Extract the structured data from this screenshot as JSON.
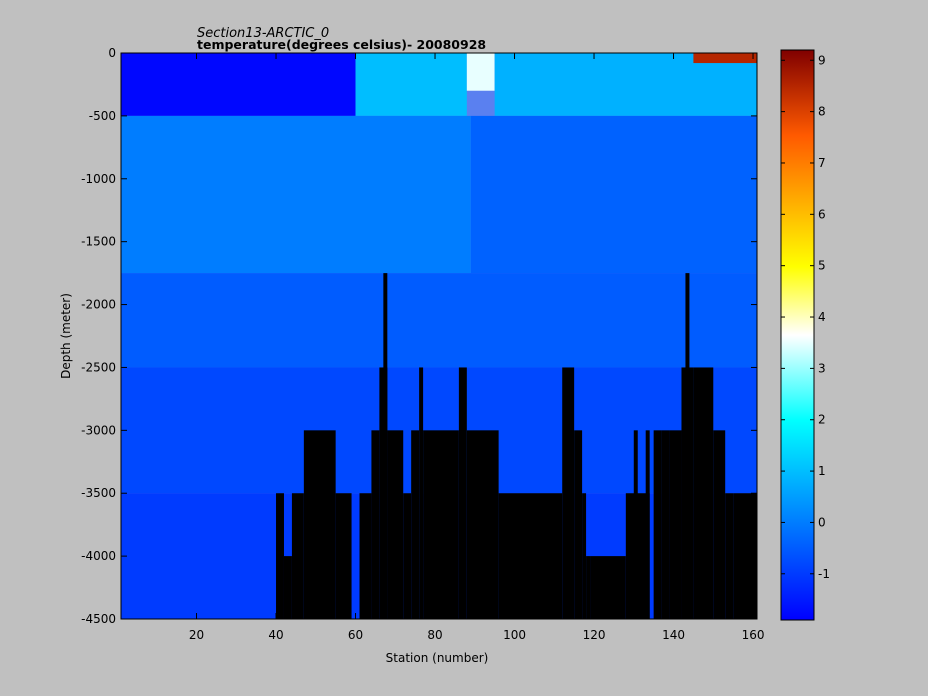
{
  "chart_data": {
    "type": "heatmap",
    "title": "Section13-ARCTIC_0",
    "subtitle": "temperature(degrees  celsius)- 20080928",
    "xlabel": "Station (number)",
    "ylabel": "Depth (meter)",
    "xlim": [
      1,
      161
    ],
    "ylim": [
      -4500,
      0
    ],
    "x_ticks": [
      20,
      40,
      60,
      80,
      100,
      120,
      140,
      160
    ],
    "x_tick_labels": [
      "20",
      "40",
      "60",
      "80",
      "100",
      "120",
      "140",
      "160"
    ],
    "y_ticks": [
      0,
      -500,
      -1000,
      -1500,
      -2000,
      -2500,
      -3000,
      -3500,
      -4000,
      -4500
    ],
    "y_tick_labels": [
      "0",
      "-500",
      "-1000",
      "-1500",
      "-2000",
      "-2500",
      "-3000",
      "-3500",
      "-4000",
      "-4500"
    ],
    "colorbar": {
      "colormap": "jet",
      "range": [
        -1.9,
        9.2
      ],
      "ticks": [
        -1,
        0,
        1,
        2,
        3,
        4,
        5,
        6,
        7,
        8,
        9
      ],
      "tick_labels": [
        "-1",
        "0",
        "1",
        "2",
        "3",
        "4",
        "5",
        "6",
        "7",
        "8",
        "9"
      ]
    },
    "background_temperature": [
      {
        "depth_top": 0,
        "depth_bottom": -500,
        "stations": [
          1,
          60
        ],
        "value": -1.8
      },
      {
        "depth_top": 0,
        "depth_bottom": -500,
        "stations": [
          60,
          88
        ],
        "value": 1.0
      },
      {
        "depth_top": 0,
        "depth_bottom": -300,
        "stations": [
          88,
          95
        ],
        "value": 3.5
      },
      {
        "depth_top": 0,
        "depth_bottom": -500,
        "stations": [
          95,
          161
        ],
        "value": 0.8
      },
      {
        "depth_top": 0,
        "depth_bottom": -80,
        "stations": [
          145,
          161
        ],
        "value": 8.5
      },
      {
        "depth_top": -500,
        "depth_bottom": -1750,
        "stations": [
          1,
          89
        ],
        "value": 0.0
      },
      {
        "depth_top": -500,
        "depth_bottom": -1750,
        "stations": [
          89,
          161
        ],
        "value": -0.4
      },
      {
        "depth_top": -1750,
        "depth_bottom": -2500,
        "stations": [
          1,
          161
        ],
        "value": -0.5
      },
      {
        "depth_top": -2500,
        "depth_bottom": -3500,
        "stations": [
          1,
          161
        ],
        "value": -0.8
      },
      {
        "depth_top": -3500,
        "depth_bottom": -4500,
        "stations": [
          1,
          161
        ],
        "value": -1.0
      }
    ],
    "bathymetry": [
      {
        "stations": [
          40,
          42
        ],
        "bottom_depth": -3500
      },
      {
        "stations": [
          42,
          44
        ],
        "bottom_depth": -4000
      },
      {
        "stations": [
          44,
          47
        ],
        "bottom_depth": -3500
      },
      {
        "stations": [
          47,
          55
        ],
        "bottom_depth": -3000
      },
      {
        "stations": [
          55,
          59
        ],
        "bottom_depth": -3500
      },
      {
        "stations": [
          61,
          64
        ],
        "bottom_depth": -3500
      },
      {
        "stations": [
          64,
          66
        ],
        "bottom_depth": -3000
      },
      {
        "stations": [
          66,
          68
        ],
        "bottom_depth": -2500
      },
      {
        "stations": [
          67,
          68
        ],
        "bottom_depth": -1750
      },
      {
        "stations": [
          68,
          72
        ],
        "bottom_depth": -3000
      },
      {
        "stations": [
          72,
          74
        ],
        "bottom_depth": -3500
      },
      {
        "stations": [
          74,
          76
        ],
        "bottom_depth": -3000
      },
      {
        "stations": [
          76,
          77
        ],
        "bottom_depth": -2500
      },
      {
        "stations": [
          77,
          86
        ],
        "bottom_depth": -3000
      },
      {
        "stations": [
          86,
          88
        ],
        "bottom_depth": -2500
      },
      {
        "stations": [
          88,
          96
        ],
        "bottom_depth": -3000
      },
      {
        "stations": [
          96,
          112
        ],
        "bottom_depth": -3500
      },
      {
        "stations": [
          112,
          115
        ],
        "bottom_depth": -2500
      },
      {
        "stations": [
          115,
          117
        ],
        "bottom_depth": -3000
      },
      {
        "stations": [
          117,
          118
        ],
        "bottom_depth": -3500
      },
      {
        "stations": [
          118,
          119
        ],
        "bottom_depth": -4000
      },
      {
        "stations": [
          119,
          128
        ],
        "bottom_depth": -4000
      },
      {
        "stations": [
          128,
          134
        ],
        "bottom_depth": -3500
      },
      {
        "stations": [
          130,
          131
        ],
        "bottom_depth": -3000
      },
      {
        "stations": [
          133,
          134
        ],
        "bottom_depth": -3000
      },
      {
        "stations": [
          135,
          137
        ],
        "bottom_depth": -3000
      },
      {
        "stations": [
          137,
          139
        ],
        "bottom_depth": -3000
      },
      {
        "stations": [
          139,
          142
        ],
        "bottom_depth": -3000
      },
      {
        "stations": [
          142,
          145
        ],
        "bottom_depth": -2500
      },
      {
        "stations": [
          143,
          144
        ],
        "bottom_depth": -1750
      },
      {
        "stations": [
          145,
          150
        ],
        "bottom_depth": -2500
      },
      {
        "stations": [
          150,
          153
        ],
        "bottom_depth": -3000
      },
      {
        "stations": [
          153,
          155
        ],
        "bottom_depth": -3500
      },
      {
        "stations": [
          155,
          161
        ],
        "bottom_depth": -3500
      }
    ]
  }
}
